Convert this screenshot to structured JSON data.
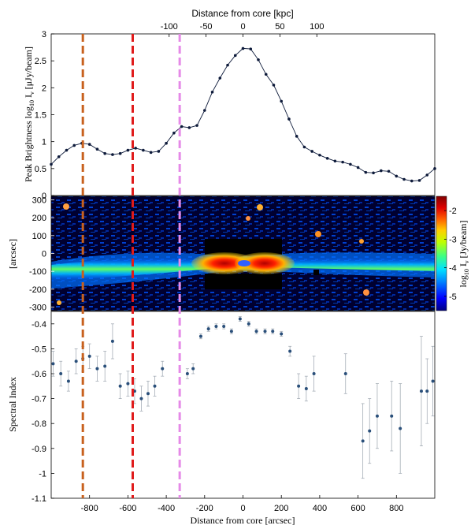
{
  "chart_data": [
    {
      "type": "line",
      "title": "",
      "xlabel_top": "Distance from core [kpc]",
      "xticks_top": [
        -100,
        -50,
        0,
        50,
        100
      ],
      "ylabel": "Peak Brightness log10 Iν [μJy/beam]",
      "ylabel_parts": {
        "pre": "Peak Brightness log",
        "sub": "10",
        "mid": " I",
        "sub2": "ν",
        "post": " [μJy/beam]"
      },
      "xlim": [
        -1000,
        1000
      ],
      "ylim": [
        0,
        3
      ],
      "yticks": [
        0,
        0.5,
        1,
        1.5,
        2,
        2.5,
        3
      ],
      "ytick_labels": [
        "0",
        "0.5",
        "1",
        "1.5",
        "2",
        "2.5",
        "3"
      ],
      "color": "#0d1a3a",
      "x": [
        -1000,
        -960,
        -920,
        -880,
        -840,
        -800,
        -760,
        -720,
        -680,
        -640,
        -600,
        -560,
        -520,
        -480,
        -440,
        -400,
        -360,
        -320,
        -280,
        -240,
        -200,
        -160,
        -120,
        -80,
        -40,
        0,
        40,
        80,
        120,
        160,
        200,
        240,
        280,
        320,
        360,
        400,
        440,
        480,
        520,
        560,
        600,
        640,
        680,
        720,
        760,
        800,
        840,
        880,
        920,
        960,
        1000
      ],
      "y": [
        0.58,
        0.72,
        0.84,
        0.93,
        0.97,
        0.95,
        0.86,
        0.78,
        0.76,
        0.78,
        0.84,
        0.88,
        0.84,
        0.8,
        0.82,
        0.97,
        1.16,
        1.28,
        1.26,
        1.3,
        1.58,
        1.92,
        2.18,
        2.42,
        2.6,
        2.73,
        2.72,
        2.52,
        2.25,
        2.05,
        1.75,
        1.42,
        1.1,
        0.9,
        0.82,
        0.75,
        0.69,
        0.64,
        0.62,
        0.58,
        0.52,
        0.43,
        0.42,
        0.46,
        0.45,
        0.36,
        0.3,
        0.27,
        0.28,
        0.38,
        0.5
      ]
    },
    {
      "type": "heatmap",
      "ylabel": "[arcsec]",
      "xlim": [
        -1000,
        1000
      ],
      "ylim": [
        -320,
        320
      ],
      "yticks": [
        -300,
        -200,
        -100,
        0,
        100,
        200,
        300
      ],
      "colorbar": {
        "label": "log10 Iν [Jy/beam]",
        "label_parts": {
          "pre": "log",
          "sub": "10",
          "mid": " I",
          "sub2": "ν",
          "post": " [Jy/beam]"
        },
        "range": [
          -5.5,
          -1.5
        ],
        "ticks": [
          -5,
          -4,
          -3,
          -2
        ],
        "tick_labels": [
          "-5",
          "-4",
          "-3",
          "-2"
        ]
      },
      "colormap": [
        "#000080",
        "#0000ff",
        "#0080ff",
        "#00e0ff",
        "#40ff80",
        "#c0ff00",
        "#ffd000",
        "#ff6000",
        "#e00000",
        "#800000"
      ]
    },
    {
      "type": "scatter",
      "xlabel": "Distance from core [arcsec]",
      "ylabel": "Spectral Index",
      "xlim": [
        -1000,
        1000
      ],
      "ylim": [
        -1.1,
        -0.35
      ],
      "yticks": [
        -0.4,
        -0.5,
        -0.6,
        -0.7,
        -0.8,
        -0.9,
        -1,
        -1.1
      ],
      "ytick_labels": [
        "-0.4",
        "-0.5",
        "-0.6",
        "-0.7",
        "-0.8",
        "-0.9",
        "-1",
        "-1.1"
      ],
      "xticks": [
        -800,
        -600,
        -400,
        -200,
        0,
        200,
        400,
        600,
        800
      ],
      "xtick_labels": [
        "-800",
        "-600",
        "-400",
        "-200",
        "0",
        "200",
        "400",
        "600",
        "800"
      ],
      "color": "#2a4f7a",
      "points": [
        {
          "x": -990,
          "y": -0.56,
          "err": 0.05
        },
        {
          "x": -950,
          "y": -0.6,
          "err": 0.05
        },
        {
          "x": -910,
          "y": -0.63,
          "err": 0.04
        },
        {
          "x": -870,
          "y": -0.55,
          "err": 0.05
        },
        {
          "x": -835,
          "y": -0.54,
          "err": 0.05
        },
        {
          "x": -800,
          "y": -0.53,
          "err": 0.05
        },
        {
          "x": -760,
          "y": -0.58,
          "err": 0.05
        },
        {
          "x": -720,
          "y": -0.57,
          "err": 0.06
        },
        {
          "x": -680,
          "y": -0.47,
          "err": 0.07
        },
        {
          "x": -640,
          "y": -0.65,
          "err": 0.05
        },
        {
          "x": -600,
          "y": -0.64,
          "err": 0.05
        },
        {
          "x": -565,
          "y": -0.67,
          "err": 0.05
        },
        {
          "x": -530,
          "y": -0.7,
          "err": 0.05
        },
        {
          "x": -495,
          "y": -0.68,
          "err": 0.05
        },
        {
          "x": -460,
          "y": -0.65,
          "err": 0.04
        },
        {
          "x": -420,
          "y": -0.58,
          "err": 0.03
        },
        {
          "x": -290,
          "y": -0.6,
          "err": 0.02
        },
        {
          "x": -260,
          "y": -0.58,
          "err": 0.02
        },
        {
          "x": -220,
          "y": -0.45,
          "err": 0.01
        },
        {
          "x": -180,
          "y": -0.42,
          "err": 0.01
        },
        {
          "x": -140,
          "y": -0.41,
          "err": 0.01
        },
        {
          "x": -100,
          "y": -0.41,
          "err": 0.01
        },
        {
          "x": -60,
          "y": -0.43,
          "err": 0.01
        },
        {
          "x": -15,
          "y": -0.38,
          "err": 0.01
        },
        {
          "x": 30,
          "y": -0.4,
          "err": 0.01
        },
        {
          "x": 70,
          "y": -0.43,
          "err": 0.01
        },
        {
          "x": 115,
          "y": -0.43,
          "err": 0.01
        },
        {
          "x": 155,
          "y": -0.43,
          "err": 0.01
        },
        {
          "x": 200,
          "y": -0.44,
          "err": 0.01
        },
        {
          "x": 245,
          "y": -0.51,
          "err": 0.02
        },
        {
          "x": 290,
          "y": -0.65,
          "err": 0.05
        },
        {
          "x": 330,
          "y": -0.66,
          "err": 0.05
        },
        {
          "x": 370,
          "y": -0.6,
          "err": 0.07
        },
        {
          "x": 535,
          "y": -0.6,
          "err": 0.08
        },
        {
          "x": 625,
          "y": -0.87,
          "err": 0.15
        },
        {
          "x": 660,
          "y": -0.83,
          "err": 0.13
        },
        {
          "x": 700,
          "y": -0.77,
          "err": 0.13
        },
        {
          "x": 775,
          "y": -0.77,
          "err": 0.14
        },
        {
          "x": 820,
          "y": -0.82,
          "err": 0.18
        },
        {
          "x": 930,
          "y": -0.67,
          "err": 0.22
        },
        {
          "x": 960,
          "y": -0.67,
          "err": 0.13
        },
        {
          "x": 990,
          "y": -0.63,
          "err": 0.14
        }
      ]
    }
  ],
  "markers": [
    {
      "x": -835,
      "color": "#c8611e"
    },
    {
      "x": -575,
      "color": "#e01b1b"
    },
    {
      "x": -330,
      "color": "#e58ae8"
    }
  ]
}
